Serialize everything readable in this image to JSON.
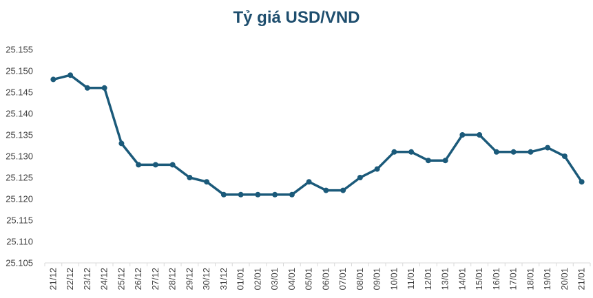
{
  "chart_data": {
    "type": "line",
    "title": "Tỷ giá USD/VND",
    "xlabel": "",
    "ylabel": "",
    "ylim": [
      25.105,
      25.155
    ],
    "yticks": [
      "25.105",
      "25.110",
      "25.115",
      "25.120",
      "25.125",
      "25.130",
      "25.135",
      "25.140",
      "25.145",
      "25.150",
      "25.155"
    ],
    "grid": false,
    "legend": "none",
    "categories": [
      "21/12",
      "22/12",
      "23/12",
      "24/12",
      "25/12",
      "26/12",
      "27/12",
      "28/12",
      "29/12",
      "30/12",
      "31/12",
      "01/01",
      "02/01",
      "03/01",
      "04/01",
      "05/01",
      "06/01",
      "07/01",
      "08/01",
      "09/01",
      "10/01",
      "11/01",
      "12/01",
      "13/01",
      "14/01",
      "15/01",
      "16/01",
      "17/01",
      "18/01",
      "19/01",
      "20/01",
      "21/01"
    ],
    "series": [
      {
        "color": "#1b5a7a",
        "values": [
          25.148,
          25.149,
          25.146,
          25.146,
          25.133,
          25.128,
          25.128,
          25.128,
          25.125,
          25.124,
          25.121,
          25.121,
          25.121,
          25.121,
          25.121,
          25.124,
          25.122,
          25.122,
          25.125,
          25.127,
          25.131,
          25.131,
          25.129,
          25.129,
          25.135,
          25.135,
          25.131,
          25.131,
          25.131,
          25.132,
          25.13,
          25.124
        ]
      }
    ]
  }
}
